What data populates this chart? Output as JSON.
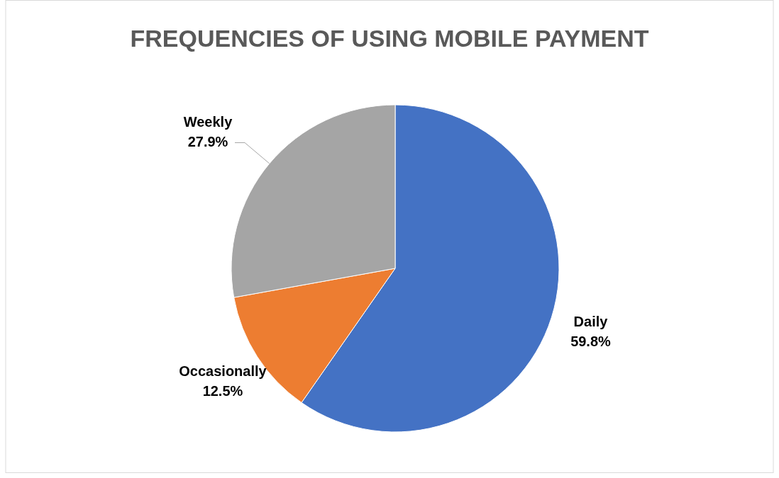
{
  "chart_data": {
    "type": "pie",
    "title": "FREQUENCIES OF USING MOBILE PAYMENT",
    "categories": [
      "Daily",
      "Occasionally",
      "Weekly"
    ],
    "values": [
      59.8,
      12.5,
      27.9
    ],
    "value_labels": [
      "59.8%",
      "12.5%",
      "27.9%"
    ],
    "colors": [
      "#4472c4",
      "#ed7d31",
      "#a5a5a5"
    ]
  }
}
